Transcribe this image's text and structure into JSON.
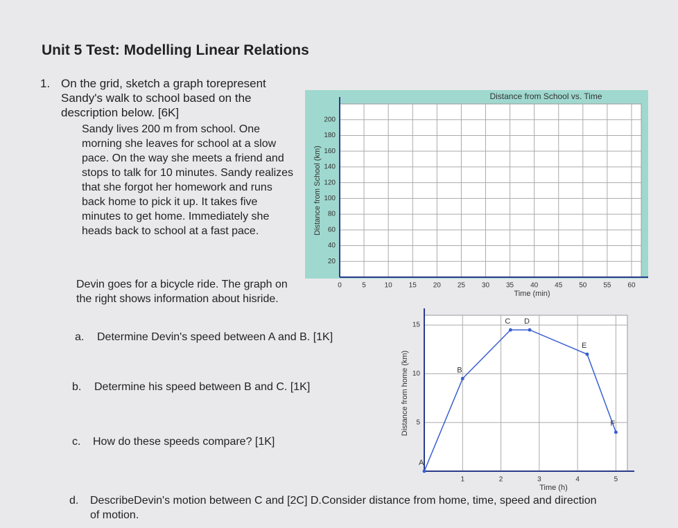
{
  "header": {
    "title": "Unit 5 Test: Modelling Linear Relations"
  },
  "question": {
    "number": "1.",
    "prompt": "On the grid, sketch a graph torepresent Sandy's walk to school based on the description below. [6K]",
    "sandy": "Sandy lives 200 m from school. One morning she leaves for school at a slow pace. On the way she meets a friend and stops to talk for 10 minutes. Sandy realizes that she forgot her homework and runs back home to pick it up. It takes five minutes to get home. Immediately she heads back to school at a fast pace.",
    "devin": "Devin goes for a bicycle ride. The graph on the right shows information about hisride.",
    "parts": [
      {
        "label": "a.",
        "text": "Determine Devin's speed between A and B. [1K]"
      },
      {
        "label": "b.",
        "text": "Determine his speed between B and C. [1K]"
      },
      {
        "label": "c.",
        "text": "How do these speeds compare? [1K]"
      },
      {
        "label": "d.",
        "text": "DescribeDevin's motion between C and [2C] D.Consider distance from home, time, speed and direction of motion."
      }
    ]
  },
  "chart_data": [
    {
      "type": "line",
      "title": "Distance from School vs. Time",
      "x_label": "Time (min)",
      "y_label": "Distance from School (km)",
      "xlim": [
        0,
        62
      ],
      "ylim": [
        0,
        220
      ],
      "xticks": [
        0,
        5,
        10,
        15,
        20,
        25,
        30,
        35,
        40,
        45,
        50,
        55,
        60
      ],
      "yticks": [
        20,
        40,
        60,
        80,
        100,
        120,
        140,
        160,
        180,
        200
      ],
      "grid": true
    },
    {
      "type": "line",
      "x_label": "Time (h)",
      "y_label": "Distance from home (km)",
      "xlim": [
        0,
        5.3
      ],
      "ylim": [
        0,
        16
      ],
      "xticks": [
        1,
        2,
        3,
        4,
        5
      ],
      "yticks": [
        5,
        10,
        15
      ],
      "grid": true,
      "x": [
        0,
        1,
        2.25,
        2.75,
        4.25,
        5
      ],
      "values": [
        0,
        9.5,
        14.5,
        14.5,
        12,
        4
      ],
      "point_labels": [
        "A",
        "B",
        "C",
        "D",
        "E",
        "F"
      ],
      "color": "#3a5fd0"
    }
  ]
}
